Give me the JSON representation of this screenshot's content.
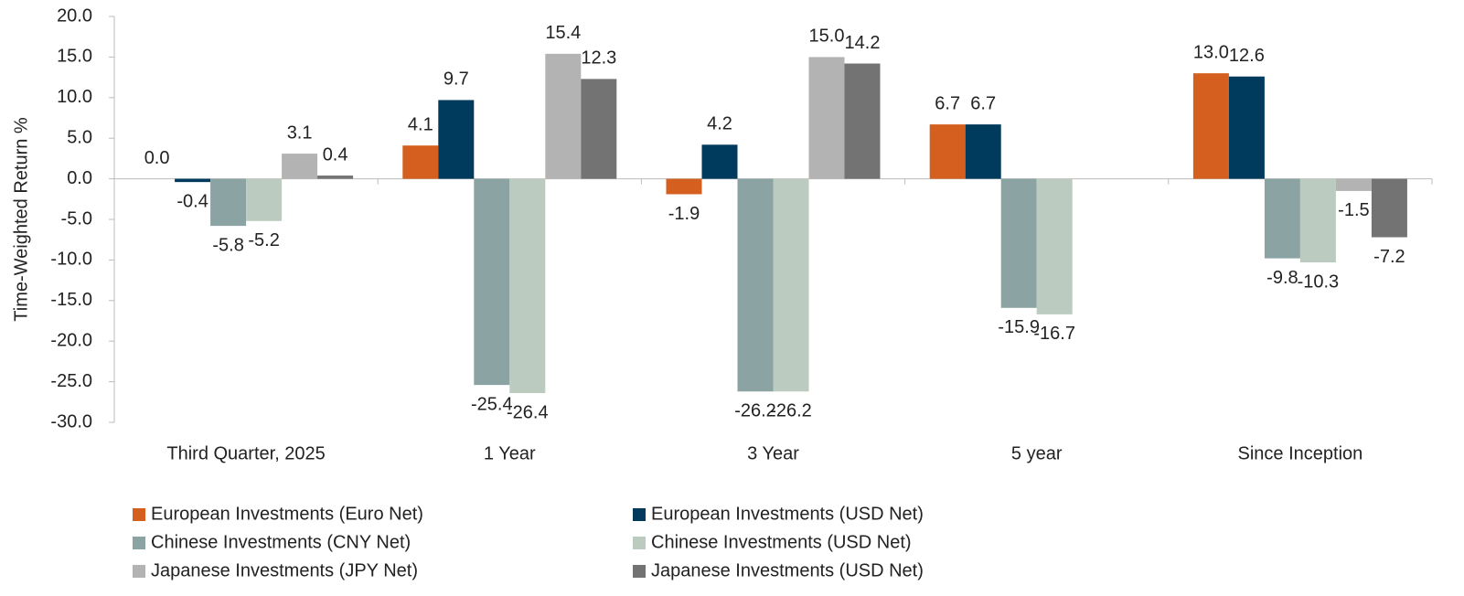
{
  "chart_data": {
    "type": "bar",
    "ylabel": "Time-Weighted Return %",
    "categories": [
      "Third Quarter, 2025",
      "1 Year",
      "3 Year",
      "5 year",
      "Since Inception"
    ],
    "series": [
      {
        "name": "European Investments (Euro Net)",
        "color": "#d45f1e",
        "values": [
          0.0,
          4.1,
          -1.9,
          6.7,
          13.0
        ],
        "value_labels": [
          "0.0",
          "4.1",
          "-1.9",
          "6.7",
          "13.0"
        ]
      },
      {
        "name": "European Investments (USD Net)",
        "color": "#003a5c",
        "values": [
          -0.4,
          9.7,
          4.2,
          6.7,
          12.6
        ],
        "value_labels": [
          "-0.4",
          "9.7",
          "4.2",
          "6.7",
          "12.6"
        ]
      },
      {
        "name": "Chinese Investments (CNY Net)",
        "color": "#8ba3a3",
        "values": [
          -5.8,
          -25.4,
          -26.2,
          -15.9,
          -9.8
        ],
        "value_labels": [
          "-5.8",
          "-25.4",
          "-26.2",
          "-15.9",
          "-9.8"
        ]
      },
      {
        "name": "Chinese Investments (USD Net)",
        "color": "#bccbbf",
        "values": [
          -5.2,
          -26.4,
          -26.2,
          -16.7,
          -10.3
        ],
        "value_labels": [
          "-5.2",
          "-26.4",
          "-26.2",
          "-16.7",
          "-10.3"
        ]
      },
      {
        "name": "Japanese Investments (JPY Net)",
        "color": "#b3b3b3",
        "values": [
          3.1,
          15.4,
          15.0,
          null,
          -1.5
        ],
        "value_labels": [
          "3.1",
          "15.4",
          "15.0",
          null,
          "-1.5"
        ]
      },
      {
        "name": "Japanese Investments (USD Net)",
        "color": "#737373",
        "values": [
          0.4,
          12.3,
          14.2,
          null,
          -7.2
        ],
        "value_labels": [
          "0.4",
          "12.3",
          "14.2",
          null,
          "-7.2"
        ]
      }
    ],
    "ylim": [
      -30,
      20
    ],
    "yticks": [
      {
        "value": -30,
        "label": "-30.0"
      },
      {
        "value": -25,
        "label": "-25.0"
      },
      {
        "value": -20,
        "label": "-20.0"
      },
      {
        "value": -15,
        "label": "-15.0"
      },
      {
        "value": -10,
        "label": "-10.0"
      },
      {
        "value": -5,
        "label": "-5.0"
      },
      {
        "value": 0,
        "label": "0.0"
      },
      {
        "value": 5,
        "label": "5.0"
      },
      {
        "value": 10,
        "label": "10.0"
      },
      {
        "value": 15,
        "label": "15.0"
      },
      {
        "value": 20,
        "label": "20.0"
      }
    ],
    "grid": false,
    "legend": "bottom"
  }
}
